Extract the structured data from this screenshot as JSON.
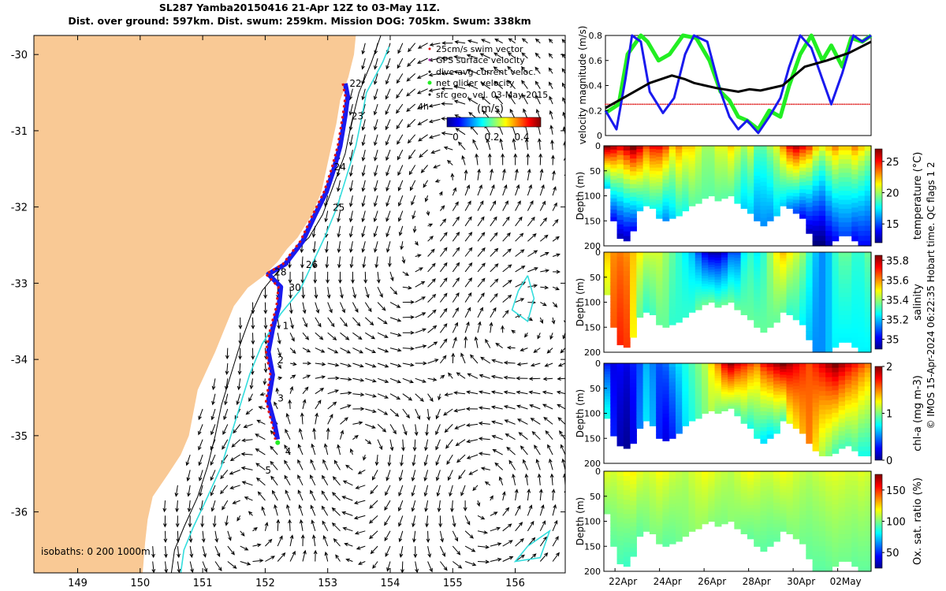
{
  "header": {
    "line1": "SL287 Yamba20150416 21-Apr 12Z to 03-May 11Z.",
    "line2": "Dist. over ground: 597km. Dist. swum: 259km. Mission DOG: 705km. Swum: 338km"
  },
  "credit": "© IMOS 15-Apr-2024 06:22:35 Hobart time. QC flags 1  2",
  "colors": {
    "land": "#f9c995",
    "sea": "#ffffff",
    "track_red": "#dd1111",
    "track_blue": "#1a1aee",
    "net_green": "#22ee22",
    "isobath_200": "#000000",
    "isobath_1000": "#33dddd"
  },
  "chart_data": [
    {
      "type": "map",
      "name": "glider-map",
      "xlim": [
        148.3,
        156.8
      ],
      "ylim": [
        -36.8,
        -29.75
      ],
      "xticks": [
        "149",
        "150",
        "151",
        "152",
        "153",
        "154",
        "155",
        "156"
      ],
      "yticks": [
        "-30",
        "-31",
        "-32",
        "-33",
        "-34",
        "-35",
        "-36"
      ],
      "legend": [
        "25cm/s swim vector",
        "GPS surface velocity",
        "dive-avg current veloc.",
        "net glider velocity",
        "sfc geo. vel. 03-May-2015",
        "4h"
      ],
      "colorbar": {
        "title": "(m/s)",
        "ticks": [
          "0",
          "0.2",
          "0.4"
        ],
        "range": [
          0,
          0.5
        ]
      },
      "isobaths_label": "isobaths: 0   200  1000m",
      "coastline": [
        [
          153.45,
          -29.75
        ],
        [
          153.42,
          -30.0
        ],
        [
          153.33,
          -30.3
        ],
        [
          153.2,
          -30.6
        ],
        [
          153.14,
          -30.9
        ],
        [
          153.06,
          -31.2
        ],
        [
          152.98,
          -31.5
        ],
        [
          152.9,
          -31.8
        ],
        [
          152.75,
          -32.1
        ],
        [
          152.52,
          -32.4
        ],
        [
          152.35,
          -32.55
        ],
        [
          152.2,
          -32.72
        ],
        [
          151.98,
          -32.9
        ],
        [
          151.72,
          -33.06
        ],
        [
          151.5,
          -33.3
        ],
        [
          151.35,
          -33.6
        ],
        [
          151.2,
          -33.9
        ],
        [
          151.06,
          -34.15
        ],
        [
          150.92,
          -34.4
        ],
        [
          150.85,
          -34.7
        ],
        [
          150.78,
          -35.0
        ],
        [
          150.65,
          -35.25
        ],
        [
          150.45,
          -35.5
        ],
        [
          150.2,
          -35.8
        ],
        [
          150.12,
          -36.1
        ],
        [
          150.08,
          -36.4
        ],
        [
          150.04,
          -36.8
        ]
      ],
      "isobath_200": [
        [
          153.85,
          -29.75
        ],
        [
          153.7,
          -30.1
        ],
        [
          153.5,
          -30.5
        ],
        [
          153.38,
          -30.9
        ],
        [
          153.28,
          -31.3
        ],
        [
          153.1,
          -31.7
        ],
        [
          152.92,
          -32.1
        ],
        [
          152.7,
          -32.4
        ],
        [
          152.45,
          -32.6
        ],
        [
          152.2,
          -32.85
        ],
        [
          151.95,
          -33.1
        ],
        [
          151.78,
          -33.4
        ],
        [
          151.6,
          -33.8
        ],
        [
          151.45,
          -34.2
        ],
        [
          151.3,
          -34.6
        ],
        [
          151.2,
          -35.0
        ],
        [
          151.08,
          -35.4
        ],
        [
          150.92,
          -35.8
        ],
        [
          150.7,
          -36.2
        ],
        [
          150.55,
          -36.5
        ],
        [
          150.5,
          -36.8
        ]
      ],
      "isobath_1000": [
        [
          153.98,
          -29.9
        ],
        [
          153.88,
          -30.1
        ],
        [
          153.62,
          -30.5
        ],
        [
          153.55,
          -30.8
        ],
        [
          153.45,
          -31.2
        ],
        [
          153.3,
          -31.6
        ],
        [
          153.15,
          -32.0
        ],
        [
          152.95,
          -32.4
        ],
        [
          152.75,
          -32.75
        ],
        [
          152.55,
          -33.1
        ],
        [
          152.25,
          -33.4
        ],
        [
          151.95,
          -33.8
        ],
        [
          151.75,
          -34.2
        ],
        [
          151.6,
          -34.6
        ],
        [
          151.45,
          -35.0
        ],
        [
          151.3,
          -35.4
        ],
        [
          151.08,
          -35.8
        ],
        [
          150.85,
          -36.2
        ],
        [
          150.7,
          -36.5
        ],
        [
          150.65,
          -36.8
        ]
      ],
      "eddy_contour_1": [
        [
          156.2,
          -32.9
        ],
        [
          156.3,
          -33.2
        ],
        [
          156.2,
          -33.5
        ],
        [
          155.95,
          -33.35
        ],
        [
          156.05,
          -33.1
        ],
        [
          156.2,
          -32.9
        ]
      ],
      "eddy_contour_2": [
        [
          156.2,
          -36.45
        ],
        [
          156.55,
          -36.25
        ],
        [
          156.4,
          -36.6
        ],
        [
          156.0,
          -36.65
        ],
        [
          156.2,
          -36.45
        ]
      ],
      "glider_track": [
        [
          153.28,
          -30.38
        ],
        [
          153.32,
          -30.55
        ],
        [
          153.28,
          -30.8
        ],
        [
          153.2,
          -31.2
        ],
        [
          153.1,
          -31.5
        ],
        [
          152.98,
          -31.8
        ],
        [
          152.8,
          -32.1
        ],
        [
          152.6,
          -32.45
        ],
        [
          152.32,
          -32.75
        ],
        [
          152.05,
          -32.88
        ],
        [
          152.25,
          -33.05
        ],
        [
          152.22,
          -33.3
        ],
        [
          152.12,
          -33.6
        ],
        [
          152.05,
          -33.9
        ],
        [
          152.12,
          -34.2
        ],
        [
          152.05,
          -34.55
        ],
        [
          152.15,
          -34.85
        ],
        [
          152.2,
          -35.05
        ]
      ],
      "day_labels": [
        {
          "text": "22",
          "lon": 153.35,
          "lat": -30.42
        },
        {
          "text": "23",
          "lon": 153.38,
          "lat": -30.85
        },
        {
          "text": "24",
          "lon": 153.1,
          "lat": -31.52
        },
        {
          "text": "25",
          "lon": 153.08,
          "lat": -32.05
        },
        {
          "text": "26",
          "lon": 152.65,
          "lat": -32.8
        },
        {
          "text": "28",
          "lon": 152.15,
          "lat": -32.9
        },
        {
          "text": "30",
          "lon": 152.38,
          "lat": -33.1
        },
        {
          "text": "1",
          "lon": 152.28,
          "lat": -33.6
        },
        {
          "text": "2",
          "lon": 152.2,
          "lat": -34.05
        },
        {
          "text": "3",
          "lon": 152.2,
          "lat": -34.55
        },
        {
          "text": "4",
          "lon": 152.32,
          "lat": -35.25
        },
        {
          "text": "5",
          "lon": 152.0,
          "lat": -35.5
        }
      ]
    },
    {
      "type": "line",
      "name": "velocity-magnitude",
      "ylabel": "velocity magnitude (m/s)",
      "ylim": [
        0,
        0.8
      ],
      "yticks": [
        "0",
        "0.2",
        "0.4",
        "0.6",
        "0.8"
      ],
      "xlim": [
        0,
        12
      ],
      "grid": false,
      "series": [
        {
          "color": "#dd1111",
          "style": "dots",
          "x": [
            0,
            12
          ],
          "y": [
            0.25,
            0.25
          ]
        },
        {
          "color": "#22ee22",
          "x": [
            0,
            0.6,
            1.0,
            1.6,
            1.9,
            2.4,
            2.9,
            3.5,
            4.1,
            4.7,
            5.2,
            5.6,
            6.0,
            6.4,
            6.9,
            7.4,
            7.9,
            8.3,
            8.8,
            9.3,
            9.8,
            10.2,
            10.7,
            11.1,
            11.6,
            12.0
          ],
          "y": [
            0.18,
            0.25,
            0.65,
            0.8,
            0.75,
            0.6,
            0.65,
            0.8,
            0.78,
            0.6,
            0.35,
            0.28,
            0.15,
            0.12,
            0.05,
            0.2,
            0.15,
            0.4,
            0.65,
            0.8,
            0.6,
            0.72,
            0.55,
            0.78,
            0.75,
            0.8
          ]
        },
        {
          "color": "#1a1aee",
          "x": [
            0,
            0.5,
            0.9,
            1.2,
            1.6,
            2.0,
            2.6,
            3.1,
            3.6,
            4.0,
            4.6,
            5.2,
            5.6,
            6.0,
            6.4,
            6.9,
            7.4,
            7.9,
            8.3,
            8.8,
            9.3,
            9.8,
            10.2,
            10.7,
            11.2,
            11.6,
            12.0
          ],
          "y": [
            0.2,
            0.05,
            0.45,
            0.8,
            0.75,
            0.35,
            0.18,
            0.3,
            0.65,
            0.8,
            0.75,
            0.35,
            0.15,
            0.05,
            0.12,
            0.02,
            0.15,
            0.3,
            0.55,
            0.8,
            0.7,
            0.45,
            0.25,
            0.5,
            0.8,
            0.75,
            0.8
          ]
        },
        {
          "color": "#000000",
          "x": [
            0,
            1,
            2,
            3,
            3.6,
            4,
            5,
            6,
            6.5,
            7,
            8,
            9,
            10,
            11,
            12
          ],
          "y": [
            0.22,
            0.32,
            0.42,
            0.48,
            0.45,
            0.42,
            0.38,
            0.35,
            0.37,
            0.36,
            0.4,
            0.55,
            0.6,
            0.66,
            0.75
          ]
        }
      ]
    },
    {
      "type": "heatmap",
      "name": "temperature-section",
      "ylabel": "Depth (m)",
      "yticks": [
        "0",
        "50",
        "100",
        "150",
        "200"
      ],
      "colorbar": {
        "label": "temperature (°C)",
        "ticks": [
          "15",
          "20",
          "25"
        ],
        "range": [
          12,
          27
        ]
      },
      "depth": [
        85,
        150,
        185,
        190,
        170,
        130,
        120,
        125,
        145,
        150,
        145,
        140,
        130,
        120,
        115,
        105,
        100,
        110,
        105,
        100,
        115,
        125,
        135,
        150,
        160,
        150,
        140,
        120,
        125,
        135,
        145,
        175,
        200,
        205,
        200,
        190,
        180,
        180,
        190,
        200,
        200
      ],
      "surface": [
        27,
        26,
        25,
        26,
        27,
        26,
        24,
        25,
        25,
        24,
        22,
        23,
        22,
        22,
        21,
        20,
        20,
        21,
        21,
        22,
        21,
        20,
        21,
        19,
        19,
        20,
        21,
        23,
        25,
        26,
        25,
        24,
        22,
        21,
        22,
        23,
        22,
        22,
        23,
        22,
        21
      ],
      "deep": [
        17,
        14,
        13,
        13,
        14,
        17,
        18,
        18,
        17,
        16,
        17,
        18,
        18,
        19,
        19,
        19,
        19,
        19,
        19,
        19,
        18,
        17,
        17,
        16,
        16,
        16,
        17,
        17,
        16,
        15,
        14,
        13,
        12,
        12,
        13,
        14,
        15,
        15,
        14,
        14,
        14
      ]
    },
    {
      "type": "heatmap",
      "name": "salinity-section",
      "ylabel": "Depth (m)",
      "yticks": [
        "0",
        "50",
        "100",
        "150",
        "200"
      ],
      "colorbar": {
        "label": "salinity",
        "ticks": [
          "35",
          "35.2",
          "35.4",
          "35.6",
          "35.8"
        ],
        "range": [
          34.9,
          35.85
        ]
      },
      "depth": [
        85,
        150,
        185,
        190,
        170,
        130,
        120,
        125,
        145,
        150,
        145,
        140,
        130,
        120,
        115,
        105,
        100,
        110,
        105,
        100,
        115,
        125,
        135,
        150,
        160,
        150,
        140,
        120,
        125,
        135,
        145,
        175,
        200,
        205,
        200,
        190,
        180,
        180,
        190,
        200,
        200
      ],
      "surface": [
        35.55,
        35.6,
        35.62,
        35.6,
        35.55,
        35.5,
        35.45,
        35.45,
        35.45,
        35.4,
        35.35,
        35.3,
        35.25,
        35.2,
        35.1,
        35.0,
        34.95,
        34.95,
        35.0,
        35.1,
        35.1,
        35.25,
        35.3,
        35.25,
        35.3,
        35.4,
        35.5,
        35.55,
        35.5,
        35.45,
        35.4,
        35.3,
        35.2,
        35.15,
        35.2,
        35.3,
        35.35,
        35.35,
        35.3,
        35.3,
        35.35
      ],
      "deep": [
        35.45,
        35.65,
        35.7,
        35.68,
        35.5,
        35.35,
        35.3,
        35.32,
        35.35,
        35.35,
        35.3,
        35.3,
        35.3,
        35.3,
        35.35,
        35.35,
        35.35,
        35.35,
        35.35,
        35.35,
        35.35,
        35.35,
        35.35,
        35.35,
        35.35,
        35.35,
        35.35,
        35.35,
        35.3,
        35.3,
        35.25,
        35.2,
        35.15,
        35.15,
        35.2,
        35.25,
        35.25,
        35.25,
        35.25,
        35.25,
        35.25
      ]
    },
    {
      "type": "heatmap",
      "name": "chla-section",
      "ylabel": "Depth (m)",
      "yticks": [
        "0",
        "50",
        "100",
        "150",
        "200"
      ],
      "colorbar": {
        "label": "chl-a (mg m-3)",
        "ticks": [
          "0",
          "1",
          "2"
        ],
        "range": [
          0,
          2
        ]
      },
      "depth": [
        110,
        145,
        165,
        170,
        160,
        130,
        115,
        125,
        150,
        155,
        150,
        140,
        125,
        115,
        110,
        100,
        95,
        100,
        95,
        90,
        105,
        120,
        130,
        150,
        160,
        150,
        140,
        115,
        120,
        130,
        140,
        160,
        175,
        185,
        185,
        180,
        170,
        165,
        175,
        185,
        185
      ],
      "surface": [
        0.3,
        0.2,
        0.25,
        0.2,
        0.3,
        0.4,
        0.6,
        0.5,
        0.4,
        0.45,
        0.6,
        0.7,
        0.8,
        0.9,
        1.0,
        1.1,
        1.3,
        1.5,
        1.8,
        1.95,
        1.8,
        1.7,
        1.6,
        1.5,
        1.7,
        1.8,
        1.9,
        2.0,
        1.9,
        1.8,
        1.7,
        1.6,
        1.7,
        1.8,
        1.9,
        2.0,
        1.9,
        1.8,
        1.7,
        1.6,
        1.5
      ],
      "deep": [
        0.8,
        0.3,
        0.1,
        0.05,
        0.2,
        0.5,
        0.7,
        0.6,
        0.3,
        0.2,
        0.3,
        0.5,
        0.7,
        0.8,
        0.9,
        1.0,
        1.1,
        1.0,
        1.0,
        1.0,
        0.9,
        0.9,
        0.8,
        0.8,
        0.7,
        0.7,
        0.8,
        0.9,
        1.2,
        1.3,
        1.4,
        1.5,
        1.3,
        1.1,
        1.0,
        0.9,
        0.9,
        0.9,
        0.9,
        0.8,
        0.8
      ]
    },
    {
      "type": "heatmap",
      "name": "oxygen-section",
      "ylabel": "Depth (m)",
      "xlabel": "",
      "xticks": [
        "22Apr",
        "24Apr",
        "26Apr",
        "28Apr",
        "30Apr",
        "02May"
      ],
      "xtick_positions": [
        0.5,
        2.5,
        4.5,
        6.5,
        8.5,
        10.5
      ],
      "xlim": [
        0,
        12
      ],
      "yticks": [
        "0",
        "50",
        "100",
        "150",
        "200"
      ],
      "colorbar": {
        "label": "Ox. sat. ratio (%)",
        "ticks": [
          "50",
          "100",
          "150"
        ],
        "range": [
          25,
          175
        ]
      },
      "depth": [
        85,
        150,
        185,
        190,
        170,
        130,
        120,
        125,
        145,
        150,
        145,
        140,
        130,
        120,
        115,
        105,
        100,
        110,
        105,
        100,
        115,
        125,
        135,
        150,
        160,
        150,
        140,
        120,
        125,
        135,
        145,
        175,
        200,
        205,
        200,
        190,
        180,
        180,
        190,
        200,
        200
      ],
      "surface": [
        115,
        112,
        115,
        118,
        120,
        115,
        112,
        114,
        118,
        116,
        112,
        110,
        108,
        112,
        115,
        118,
        116,
        112,
        110,
        108,
        112,
        116,
        118,
        115,
        112,
        112,
        115,
        118,
        116,
        112,
        110,
        108,
        110,
        112,
        114,
        115,
        114,
        112,
        112,
        114,
        112
      ],
      "deep": [
        100,
        95,
        92,
        90,
        92,
        95,
        98,
        100,
        98,
        95,
        96,
        98,
        100,
        102,
        104,
        104,
        102,
        100,
        100,
        102,
        100,
        98,
        96,
        96,
        95,
        95,
        96,
        98,
        100,
        100,
        98,
        96,
        95,
        95,
        96,
        98,
        98,
        98,
        96,
        96,
        96
      ]
    }
  ]
}
